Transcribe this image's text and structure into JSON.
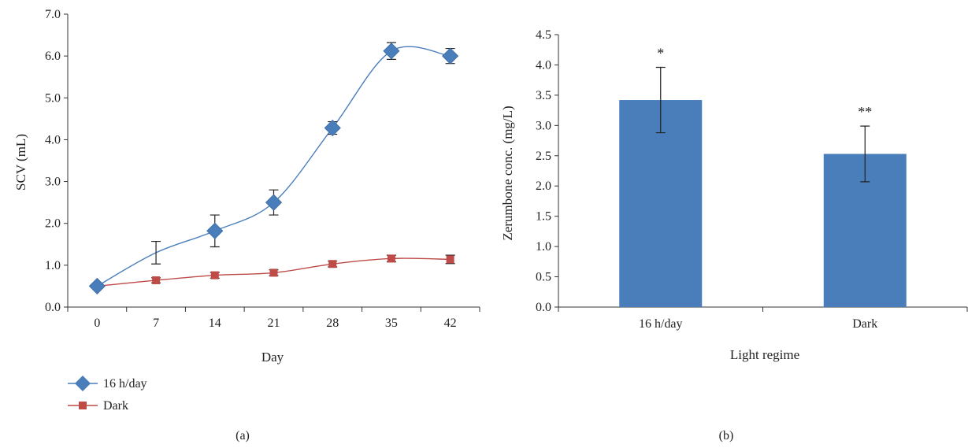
{
  "chart_data": [
    {
      "type": "line",
      "panel_label": "(a)",
      "xlabel": "Day",
      "ylabel": "SCV (mL)",
      "x": [
        0,
        7,
        14,
        21,
        28,
        35,
        42
      ],
      "xlim": [
        -3.5,
        45.5
      ],
      "ylim": [
        0,
        7
      ],
      "y_tick_labels": [
        "0.0",
        "1.0",
        "2.0",
        "3.0",
        "4.0",
        "5.0",
        "6.0",
        "7.0"
      ],
      "x_tick_labels": [
        "0",
        "7",
        "14",
        "21",
        "28",
        "35",
        "42"
      ],
      "legend_position": "bottom-left",
      "grid": false,
      "series": [
        {
          "name": "16 h/day",
          "color": "#4a7ebb",
          "marker": "diamond",
          "values": [
            0.5,
            1.3,
            1.82,
            2.5,
            4.28,
            6.12,
            6.0
          ],
          "errors": [
            0.05,
            0.27,
            0.38,
            0.3,
            0.15,
            0.2,
            0.18
          ],
          "marker_shown": [
            true,
            false,
            true,
            true,
            true,
            true,
            true
          ]
        },
        {
          "name": "Dark",
          "color": "#be4b48",
          "marker": "square",
          "values": [
            0.5,
            0.64,
            0.76,
            0.82,
            1.03,
            1.16,
            1.14
          ],
          "errors": [
            0.04,
            0.06,
            0.07,
            0.07,
            0.07,
            0.08,
            0.1
          ],
          "marker_shown": [
            true,
            true,
            true,
            true,
            true,
            true,
            true
          ]
        }
      ]
    },
    {
      "type": "bar",
      "panel_label": "(b)",
      "xlabel": "Light regime",
      "ylabel": "Zerumbone conc. (mg/L)",
      "categories": [
        "16 h/day",
        "Dark"
      ],
      "values": [
        3.42,
        2.53
      ],
      "errors": [
        0.54,
        0.46
      ],
      "annotations": [
        "*",
        "**"
      ],
      "ylim": [
        0,
        4.5
      ],
      "y_tick_labels": [
        "0.0",
        "0.5",
        "1.0",
        "1.5",
        "2.0",
        "2.5",
        "3.0",
        "3.5",
        "4.0",
        "4.5"
      ],
      "bar_color": "#4a7ebb",
      "grid": false
    }
  ]
}
